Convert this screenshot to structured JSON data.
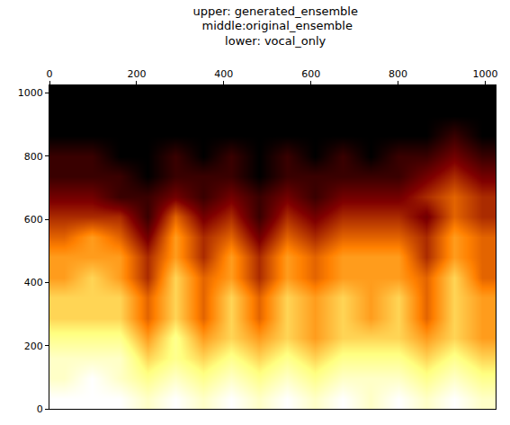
{
  "chart_data": {
    "type": "heatmap",
    "title": "upper: generated_ensemble\n middle:original_ensemble\nlower: vocal_only",
    "x": [
      32,
      96,
      160,
      224,
      288,
      352,
      416,
      480,
      544,
      608,
      672,
      736,
      800,
      864,
      928,
      992
    ],
    "y": [
      32,
      96,
      160,
      224,
      288,
      352,
      416,
      480,
      544,
      608,
      672,
      736,
      800,
      864,
      928,
      992
    ],
    "cells": [
      [
        9,
        9,
        9,
        8,
        9,
        8,
        9,
        8,
        9,
        8,
        9,
        8,
        9,
        8,
        9,
        8
      ],
      [
        8,
        9,
        8,
        7,
        8,
        7,
        8,
        7,
        8,
        7,
        8,
        8,
        8,
        7,
        8,
        7
      ],
      [
        8,
        8,
        8,
        6,
        7,
        6,
        7,
        6,
        7,
        6,
        7,
        7,
        7,
        6,
        7,
        6
      ],
      [
        7,
        7,
        7,
        5,
        7,
        5,
        6,
        5,
        6,
        5,
        6,
        6,
        6,
        5,
        6,
        5
      ],
      [
        6,
        6,
        6,
        4,
        6,
        4,
        6,
        4,
        6,
        5,
        6,
        5,
        6,
        4,
        6,
        5
      ],
      [
        6,
        6,
        6,
        4,
        6,
        4,
        6,
        4,
        6,
        5,
        6,
        5,
        6,
        4,
        6,
        5
      ],
      [
        5,
        6,
        5,
        3,
        6,
        4,
        5,
        3,
        5,
        4,
        5,
        5,
        5,
        4,
        6,
        4
      ],
      [
        5,
        5,
        5,
        3,
        5,
        3,
        5,
        3,
        5,
        4,
        5,
        5,
        5,
        3,
        5,
        4
      ],
      [
        4,
        5,
        4,
        2,
        5,
        3,
        4,
        2,
        4,
        3,
        4,
        4,
        4,
        3,
        5,
        4
      ],
      [
        3,
        3,
        3,
        1,
        4,
        2,
        3,
        1,
        3,
        2,
        3,
        3,
        3,
        2,
        4,
        3
      ],
      [
        2,
        2,
        1,
        1,
        2,
        1,
        2,
        1,
        2,
        1,
        2,
        2,
        2,
        3,
        4,
        3
      ],
      [
        1,
        1,
        1,
        0,
        1,
        1,
        1,
        0,
        1,
        1,
        1,
        1,
        1,
        2,
        3,
        2
      ],
      [
        1,
        1,
        0,
        0,
        1,
        0,
        1,
        0,
        1,
        0,
        1,
        0,
        1,
        1,
        2,
        1
      ],
      [
        0,
        0,
        0,
        0,
        0,
        0,
        0,
        0,
        0,
        0,
        0,
        0,
        0,
        0,
        1,
        0
      ],
      [
        0,
        0,
        0,
        0,
        0,
        0,
        0,
        0,
        0,
        0,
        0,
        0,
        0,
        0,
        0,
        0
      ],
      [
        0,
        0,
        0,
        0,
        0,
        0,
        0,
        0,
        0,
        0,
        0,
        0,
        0,
        0,
        0,
        0
      ]
    ],
    "colors": [
      "#000000",
      "#800000",
      "#ff8000",
      "#ffff80",
      "#ffffff"
    ],
    "xlim": [
      0,
      1024
    ],
    "ylim": [
      0,
      1024
    ],
    "xticks": [
      0,
      200,
      400,
      600,
      800,
      1000
    ],
    "yticks": [
      0,
      200,
      400,
      600,
      800,
      1000
    ]
  }
}
